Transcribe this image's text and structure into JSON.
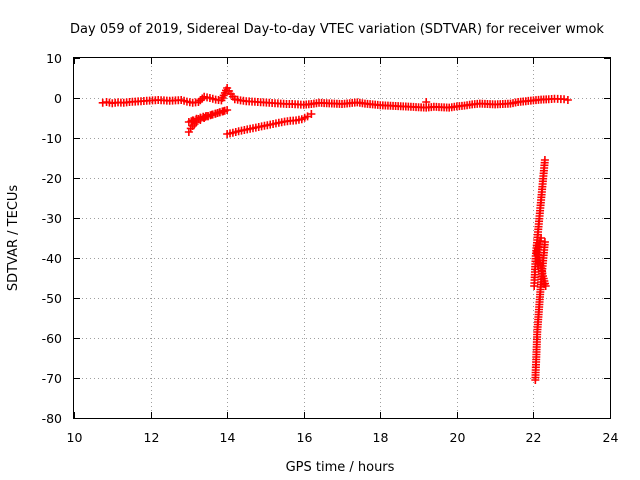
{
  "chart_data": {
    "type": "scatter",
    "title": "Day 059 of 2019, Sidereal Day-to-day VTEC variation (SDTVAR) for receiver wmok",
    "xlabel": "GPS time / hours",
    "ylabel": "SDTVAR / TECUs",
    "xlim": [
      10,
      24
    ],
    "ylim": [
      -80,
      10
    ],
    "xticks": [
      10,
      12,
      14,
      16,
      18,
      20,
      22,
      24
    ],
    "yticks": [
      10,
      0,
      -10,
      -20,
      -30,
      -40,
      -50,
      -60,
      -70,
      -80
    ],
    "grid": true,
    "marker": "+",
    "series": [
      {
        "name": "main-band",
        "color": "#ff0000",
        "points": [
          [
            10.75,
            -1.2
          ],
          [
            10.85,
            -1.0
          ],
          [
            11.0,
            -1.3
          ],
          [
            11.15,
            -1.1
          ],
          [
            11.3,
            -1.2
          ],
          [
            11.45,
            -1.0
          ],
          [
            11.6,
            -0.9
          ],
          [
            11.75,
            -0.8
          ],
          [
            11.9,
            -0.7
          ],
          [
            12.05,
            -0.6
          ],
          [
            12.2,
            -0.5
          ],
          [
            12.35,
            -0.6
          ],
          [
            12.5,
            -0.7
          ],
          [
            12.65,
            -0.6
          ],
          [
            12.8,
            -0.5
          ],
          [
            12.95,
            -0.9
          ],
          [
            13.1,
            -1.2
          ],
          [
            13.25,
            -1.0
          ],
          [
            13.4,
            0.3
          ],
          [
            13.55,
            0.0
          ],
          [
            13.7,
            -0.4
          ],
          [
            13.85,
            -0.6
          ],
          [
            14.0,
            2.5
          ],
          [
            14.1,
            1.0
          ],
          [
            14.2,
            -0.3
          ],
          [
            14.35,
            -0.6
          ],
          [
            14.5,
            -0.8
          ],
          [
            14.65,
            -0.9
          ],
          [
            14.8,
            -1.0
          ],
          [
            14.95,
            -1.1
          ],
          [
            15.1,
            -1.2
          ],
          [
            15.25,
            -1.3
          ],
          [
            15.4,
            -1.4
          ],
          [
            15.55,
            -1.5
          ],
          [
            15.7,
            -1.5
          ],
          [
            15.85,
            -1.6
          ],
          [
            16.0,
            -1.7
          ],
          [
            16.2,
            -1.5
          ],
          [
            16.4,
            -1.2
          ],
          [
            16.6,
            -1.3
          ],
          [
            16.8,
            -1.4
          ],
          [
            17.0,
            -1.5
          ],
          [
            17.2,
            -1.3
          ],
          [
            17.4,
            -1.1
          ],
          [
            17.6,
            -1.4
          ],
          [
            17.8,
            -1.6
          ],
          [
            18.0,
            -1.8
          ],
          [
            18.2,
            -1.9
          ],
          [
            18.4,
            -2.0
          ],
          [
            18.6,
            -2.1
          ],
          [
            18.8,
            -2.2
          ],
          [
            19.0,
            -2.3
          ],
          [
            19.2,
            -2.4
          ],
          [
            19.4,
            -2.2
          ],
          [
            19.6,
            -2.3
          ],
          [
            19.8,
            -2.4
          ],
          [
            20.0,
            -2.1
          ],
          [
            20.2,
            -1.9
          ],
          [
            20.4,
            -1.6
          ],
          [
            20.6,
            -1.4
          ],
          [
            20.8,
            -1.5
          ],
          [
            21.0,
            -1.6
          ],
          [
            21.2,
            -1.5
          ],
          [
            21.4,
            -1.4
          ],
          [
            21.6,
            -1.0
          ],
          [
            21.8,
            -0.8
          ],
          [
            22.0,
            -0.6
          ],
          [
            22.2,
            -0.4
          ],
          [
            22.4,
            -0.3
          ],
          [
            22.55,
            -0.2
          ],
          [
            22.8,
            -0.3
          ],
          [
            22.9,
            -0.5
          ],
          [
            19.2,
            -1.0
          ]
        ]
      },
      {
        "name": "lower-branch-13",
        "color": "#ff0000",
        "points": [
          [
            13.0,
            -8.5
          ],
          [
            13.05,
            -7.6
          ],
          [
            13.1,
            -7.0
          ],
          [
            13.15,
            -6.5
          ],
          [
            13.2,
            -6.0
          ],
          [
            13.3,
            -5.5
          ],
          [
            13.4,
            -5.0
          ],
          [
            13.5,
            -4.6
          ],
          [
            13.6,
            -4.2
          ],
          [
            13.7,
            -3.9
          ],
          [
            13.8,
            -3.6
          ],
          [
            13.9,
            -3.3
          ],
          [
            14.0,
            -3.0
          ],
          [
            13.0,
            -6.0
          ],
          [
            13.1,
            -5.6
          ],
          [
            13.2,
            -5.2
          ],
          [
            13.3,
            -4.9
          ],
          [
            13.45,
            -4.5
          ]
        ]
      },
      {
        "name": "lower-branch-14",
        "color": "#ff0000",
        "points": [
          [
            14.0,
            -9.0
          ],
          [
            14.15,
            -8.7
          ],
          [
            14.3,
            -8.3
          ],
          [
            14.45,
            -8.0
          ],
          [
            14.6,
            -7.7
          ],
          [
            14.75,
            -7.4
          ],
          [
            14.9,
            -7.1
          ],
          [
            15.05,
            -6.8
          ],
          [
            15.2,
            -6.5
          ],
          [
            15.35,
            -6.2
          ],
          [
            15.5,
            -5.9
          ],
          [
            15.65,
            -5.7
          ],
          [
            15.8,
            -5.6
          ],
          [
            15.95,
            -5.3
          ],
          [
            16.1,
            -4.6
          ],
          [
            16.2,
            -4.0
          ]
        ]
      },
      {
        "name": "dip-branch-a",
        "color": "#ff0000",
        "points": [
          [
            22.3,
            -15.5
          ],
          [
            22.28,
            -17.5
          ],
          [
            22.26,
            -19.5
          ],
          [
            22.24,
            -21.5
          ],
          [
            22.22,
            -23.5
          ],
          [
            22.2,
            -25.5
          ],
          [
            22.18,
            -27.5
          ],
          [
            22.16,
            -29.5
          ],
          [
            22.14,
            -31.5
          ],
          [
            22.12,
            -33.5
          ],
          [
            22.1,
            -35.5
          ],
          [
            22.08,
            -37.5
          ],
          [
            22.06,
            -39.5
          ],
          [
            22.05,
            -41.5
          ],
          [
            22.04,
            -43.5
          ],
          [
            22.03,
            -45.5
          ],
          [
            22.02,
            -47.0
          ]
        ]
      },
      {
        "name": "dip-branch-b",
        "color": "#ff0000",
        "points": [
          [
            22.3,
            -36.0
          ],
          [
            22.28,
            -38.0
          ],
          [
            22.26,
            -40.0
          ],
          [
            22.24,
            -42.0
          ],
          [
            22.22,
            -44.0
          ],
          [
            22.2,
            -46.0
          ],
          [
            22.18,
            -48.5
          ],
          [
            22.16,
            -51.0
          ],
          [
            22.14,
            -53.5
          ],
          [
            22.12,
            -56.0
          ],
          [
            22.1,
            -58.5
          ],
          [
            22.09,
            -61.0
          ],
          [
            22.08,
            -63.5
          ],
          [
            22.07,
            -66.0
          ],
          [
            22.06,
            -68.0
          ],
          [
            22.05,
            -70.5
          ],
          [
            22.2,
            -35.0
          ],
          [
            22.15,
            -36.5
          ],
          [
            22.1,
            -38.5
          ],
          [
            22.25,
            -44.5
          ],
          [
            22.32,
            -47.0
          ],
          [
            22.28,
            -46.5
          ]
        ]
      }
    ]
  }
}
